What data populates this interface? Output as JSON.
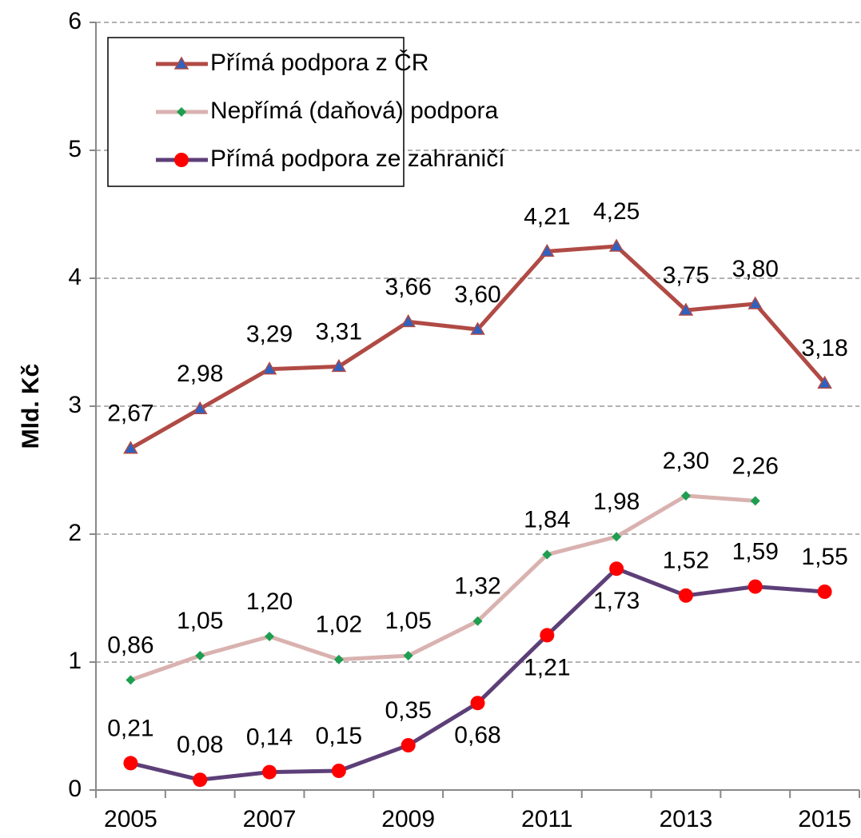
{
  "chart_data": {
    "type": "line",
    "y_label": "Mld. Kč",
    "categories": [
      "2005",
      null,
      "2007",
      null,
      "2009",
      null,
      "2011",
      null,
      "2013",
      null,
      "2015"
    ],
    "ylim": [
      0,
      6
    ],
    "yticks": [
      0,
      1,
      2,
      3,
      4,
      5,
      6
    ],
    "grid": true,
    "legend": "upper left",
    "series": [
      {
        "name": "Přímá podpora z ČR",
        "color": "#b04a45",
        "marker": "triangle",
        "marker_color": "#2f62c0",
        "values": [
          2.67,
          2.98,
          3.29,
          3.31,
          3.66,
          3.6,
          4.21,
          4.25,
          3.75,
          3.8,
          3.18
        ],
        "value_labels": [
          "2,67",
          "2,98",
          "3,29",
          "3,31",
          "3,66",
          "3,60",
          "4,21",
          "4,25",
          "3,75",
          "3,80",
          "3,18"
        ]
      },
      {
        "name": "Nepřímá (daňová) podpora",
        "color": "#d9b2b0",
        "marker": "diamond",
        "marker_color": "#1e9e50",
        "values": [
          0.86,
          1.05,
          1.2,
          1.02,
          1.05,
          1.32,
          1.84,
          1.98,
          2.3,
          2.26,
          null
        ],
        "value_labels": [
          "0,86",
          "1,05",
          "1,20",
          "1,02",
          "1,05",
          "1,32",
          "1,84",
          "1,98",
          "2,30",
          "2,26",
          null
        ]
      },
      {
        "name": "Přímá podpora ze zahraničí",
        "color": "#5d3f78",
        "marker": "circle",
        "marker_color": "#ff0000",
        "values": [
          0.21,
          0.08,
          0.14,
          0.15,
          0.35,
          0.68,
          1.21,
          1.73,
          1.52,
          1.59,
          1.55
        ],
        "value_labels": [
          "0,21",
          "0,08",
          "0,14",
          "0,15",
          "0,35",
          "0,68",
          "1,21",
          "1,73",
          "1,52",
          "1,59",
          "1,55"
        ]
      }
    ]
  }
}
